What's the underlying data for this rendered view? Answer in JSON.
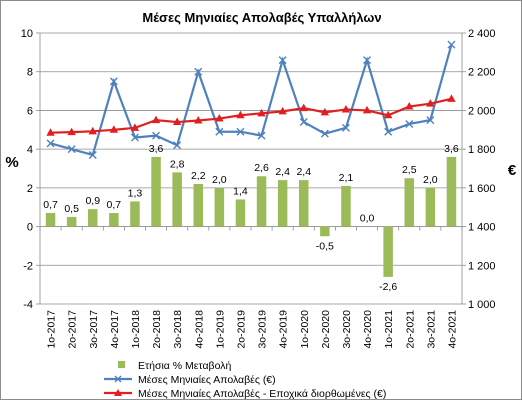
{
  "chart_data": {
    "type": "bar+line",
    "title": "Μέσες Μηνιαίες Απολαβές Υπαλλήλων",
    "categories": [
      "1ο-2017",
      "2ο-2017",
      "3ο-2017",
      "4ο-2017",
      "1ο-2018",
      "2ο-2018",
      "3ο-2018",
      "4ο-2018",
      "1ο-2019",
      "2ο-2019",
      "3ο-2019",
      "4ο-2019",
      "1ο-2020",
      "2ο-2020",
      "3ο-2020",
      "4ο-2020",
      "1ο-2021",
      "2ο-2021",
      "3ο-2021",
      "4ο-2021"
    ],
    "y_left": {
      "unit_label": "%",
      "ylim": [
        -4,
        10
      ],
      "ticks": [
        "-4",
        "-2",
        "0",
        "2",
        "4",
        "6",
        "8",
        "10"
      ]
    },
    "y_right": {
      "unit_label": "€",
      "ylim": [
        1000,
        2400
      ],
      "ticks": [
        "1 000",
        "1 200",
        "1 400",
        "1 600",
        "1 800",
        "2 000",
        "2 200",
        "2 400"
      ]
    },
    "grid": "horizontal",
    "legend_position": "bottom",
    "series": [
      {
        "name": "Ετήσια % Μεταβολή",
        "kind": "bar",
        "axis": "left",
        "color": "#9bbb59",
        "values": [
          0.7,
          0.5,
          0.9,
          0.7,
          1.3,
          3.6,
          2.8,
          2.2,
          2.0,
          1.4,
          2.6,
          2.4,
          2.4,
          -0.5,
          2.1,
          0.0,
          -2.6,
          2.5,
          2.0,
          3.6
        ],
        "labels": [
          "0,7",
          "0,5",
          "0,9",
          "0,7",
          "1,3",
          "3,6",
          "2,8",
          "2,2",
          "2,0",
          "1,4",
          "2,6",
          "2,4",
          "2,4",
          "-0,5",
          "2,1",
          "0,0",
          "-2,6",
          "2,5",
          "2,0",
          "3,6"
        ]
      },
      {
        "name": "Μέσες Μηνιαίες Απολαβές (€)",
        "kind": "line",
        "marker": "x",
        "axis": "right",
        "color": "#4f81bd",
        "values": [
          1830,
          1800,
          1770,
          2150,
          1860,
          1870,
          1820,
          2200,
          1890,
          1890,
          1870,
          2260,
          1940,
          1880,
          1910,
          2260,
          1890,
          1930,
          1950,
          2340
        ]
      },
      {
        "name": "Μέσες Μηνιαίες Απολαβές - Εποχικά διορθωμένες (€)",
        "kind": "line",
        "marker": "triangle",
        "axis": "right",
        "color": "#e02020",
        "values": [
          1885,
          1888,
          1892,
          1900,
          1910,
          1950,
          1940,
          1948,
          1958,
          1975,
          1985,
          1995,
          2012,
          1990,
          2005,
          2000,
          1975,
          2020,
          2035,
          2060
        ]
      }
    ]
  }
}
